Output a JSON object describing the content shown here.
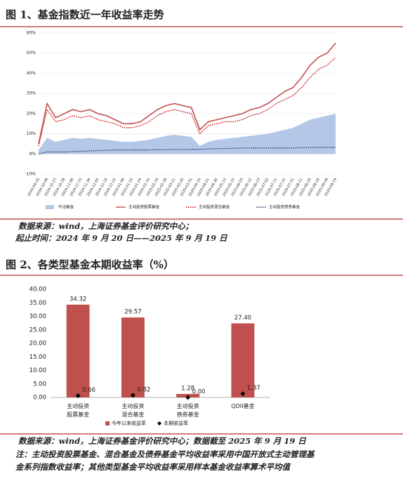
{
  "chart_data": [
    {
      "type": "line",
      "title": "图 1、基金指数近一年收益率走势",
      "categories": [
        "2024-09-20",
        "2024-10-08",
        "2024-10-17",
        "2024-10-28",
        "2024-11-06",
        "2024-11-15",
        "2024-11-26",
        "2024-12-05",
        "2024-12-16",
        "2024-12-25",
        "2025-01-06",
        "2025-01-15",
        "2025-01-24",
        "2025-02-10",
        "2025-02-19",
        "2025-02-28",
        "2025-03-11",
        "2025-03-20",
        "2025-03-31",
        "2025-04-10",
        "2025-04-21",
        "2025-04-30",
        "2025-05-13",
        "2025-05-22",
        "2025-06-03",
        "2025-06-12",
        "2025-06-23",
        "2025-07-02",
        "2025-07-11",
        "2025-07-22",
        "2025-07-31",
        "2025-08-11",
        "2025-08-20",
        "2025-08-29",
        "2025-09-09",
        "2025-09-19"
      ],
      "series": [
        {
          "name": "中证基金",
          "color": "#b4c7e7",
          "style": "area",
          "values": [
            2,
            8,
            6,
            7,
            8,
            7.5,
            8,
            7.5,
            7,
            6.5,
            6,
            6,
            6.5,
            7,
            8,
            9,
            9.5,
            9,
            8.5,
            4,
            6,
            7,
            7.5,
            8,
            8.5,
            9,
            9.5,
            10,
            11,
            12,
            13,
            15,
            17,
            18,
            19,
            20
          ]
        },
        {
          "name": "主动投资股票基金",
          "color": "#c0504d",
          "style": "solid",
          "values": [
            5,
            25,
            18,
            20,
            22,
            21,
            22,
            20,
            19,
            17,
            15,
            15,
            16,
            19,
            22,
            24,
            25,
            24,
            23,
            12,
            16,
            17,
            18,
            19,
            20,
            22,
            23,
            25,
            28,
            31,
            33,
            38,
            44,
            48,
            50,
            55
          ]
        },
        {
          "name": "主动投资混合基金",
          "color": "#c00000",
          "style": "dotted",
          "values": [
            4,
            22,
            16,
            17,
            19,
            18,
            19,
            17,
            16,
            15,
            13,
            13,
            14,
            16,
            19,
            21,
            22,
            21,
            20,
            10,
            14,
            15,
            16,
            16,
            17,
            19,
            20,
            22,
            25,
            27,
            29,
            33,
            38,
            42,
            44,
            48
          ]
        },
        {
          "name": "主动投资债券基金",
          "color": "#1f3864",
          "style": "dotted",
          "values": [
            0,
            1,
            1,
            1,
            1.2,
            1.3,
            1.5,
            1.7,
            1.8,
            2,
            2,
            2,
            2,
            2,
            2.1,
            2.1,
            2.2,
            2.2,
            2.3,
            2.3,
            2.5,
            2.6,
            2.7,
            2.8,
            2.9,
            3,
            3,
            3,
            3,
            3,
            3,
            3.1,
            3.2,
            3.2,
            3.3,
            3.3
          ]
        }
      ],
      "ylim": [
        -10,
        60
      ],
      "yticks": [
        {
          "value": -10,
          "label": "-10%"
        },
        {
          "value": 0,
          "label": "0%"
        },
        {
          "value": 10,
          "label": "10%"
        },
        {
          "value": 20,
          "label": "20%"
        },
        {
          "value": 30,
          "label": "30%"
        },
        {
          "value": 40,
          "label": "40%"
        },
        {
          "value": 50,
          "label": "50%"
        },
        {
          "value": 60,
          "label": "60%"
        }
      ],
      "grid": true,
      "notes": [
        "数据来源：wind，上海证券基金评价研究中心；",
        "起止时间：2024 年 9 月 20 日——2025 年 9 月 19 日"
      ]
    },
    {
      "type": "bar",
      "title": "图 2、各类型基金本期收益率（%）",
      "categories": [
        "主动投资\n股票基金",
        "主动投资\n混合基金",
        "主动投资\n债券基金",
        "QDII基金"
      ],
      "series": [
        {
          "name": "今年以来收益率",
          "color": "#c0504d",
          "values": [
            34.32,
            29.57,
            1.28,
            27.4
          ],
          "value_labels": [
            "34.32",
            "29.57",
            "1.28",
            "27.40"
          ]
        },
        {
          "name": "本期收益率",
          "color": "#000000",
          "values": [
            0.66,
            0.82,
            0,
            1.37
          ],
          "value_labels": [
            "0.66",
            "0.82",
            "0.00",
            "1.37"
          ]
        }
      ],
      "ylim": [
        0,
        40
      ],
      "yticks": [
        {
          "value": 0,
          "label": "0.00"
        },
        {
          "value": 5,
          "label": "5.00"
        },
        {
          "value": 10,
          "label": "10.00"
        },
        {
          "value": 15,
          "label": "15.00"
        },
        {
          "value": 20,
          "label": "20.00"
        },
        {
          "value": 25,
          "label": "25.00"
        },
        {
          "value": 30,
          "label": "30.00"
        },
        {
          "value": 35,
          "label": "35.00"
        },
        {
          "value": 40,
          "label": "40.00"
        }
      ],
      "grid": false,
      "notes": [
        "数据来源：wind，上海证券基金评价研究中心；数据截至 2025 年 9 月 19 日",
        "注：主动投资股票基金、混合基金及债券基金平均收益率采用中国开放式主动管理基",
        "金系列指数收益率；其他类型基金平均收益率采用样本基金收益率算术平均值"
      ]
    }
  ]
}
